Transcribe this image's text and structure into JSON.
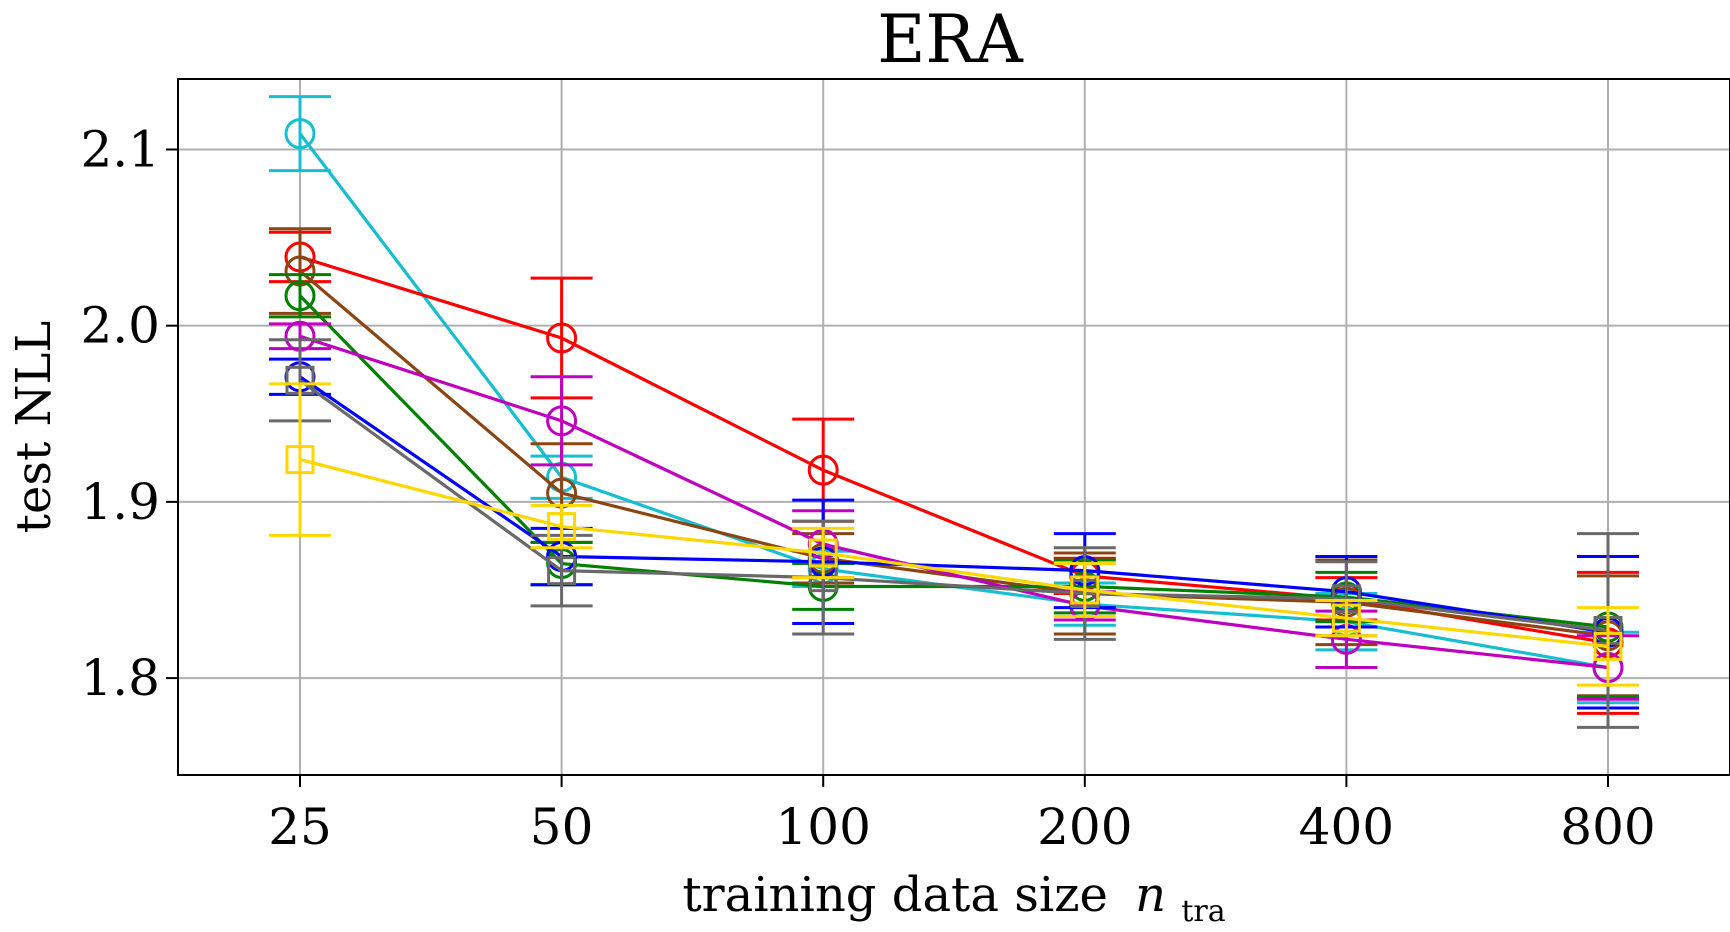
{
  "chart_data": {
    "type": "line",
    "title": "ERA",
    "xlabel": "training data size",
    "xlabel_symbol": "n",
    "xlabel_subscript": "tra",
    "ylabel": "test NLL",
    "x_scale": "log2",
    "categories": [
      "25",
      "50",
      "100",
      "200",
      "400",
      "800"
    ],
    "x": [
      25,
      50,
      100,
      200,
      400,
      800
    ],
    "ylim": [
      1.745,
      2.14
    ],
    "yticks": [
      1.8,
      1.9,
      2.0,
      2.1
    ],
    "ytick_labels": [
      "1.8",
      "1.9",
      "2.0",
      "2.1"
    ],
    "grid": true,
    "series": [
      {
        "name": "series-cyan",
        "color": "#17becf",
        "marker": "circle",
        "values": [
          2.109,
          1.914,
          1.862,
          1.842,
          1.832,
          1.806
        ],
        "errors": [
          0.021,
          0.012,
          0.01,
          0.012,
          0.016,
          0.02
        ]
      },
      {
        "name": "series-red",
        "color": "#ff0000",
        "marker": "circle",
        "values": [
          2.039,
          1.993,
          1.918,
          1.858,
          1.845,
          1.82
        ],
        "errors": [
          0.014,
          0.034,
          0.029,
          0.01,
          0.012,
          0.04
        ]
      },
      {
        "name": "series-brown",
        "color": "#8b4513",
        "marker": "circle",
        "values": [
          2.031,
          1.905,
          1.868,
          1.848,
          1.843,
          1.824
        ],
        "errors": [
          0.024,
          0.028,
          0.014,
          0.023,
          0.024,
          0.034
        ]
      },
      {
        "name": "series-green",
        "color": "#008000",
        "marker": "circle",
        "values": [
          2.017,
          1.865,
          1.852,
          1.852,
          1.846,
          1.829
        ],
        "errors": [
          0.012,
          0.012,
          0.013,
          0.015,
          0.014,
          0.04
        ]
      },
      {
        "name": "series-magenta",
        "color": "#bf00bf",
        "marker": "circle",
        "values": [
          1.994,
          1.946,
          1.876,
          1.841,
          1.822,
          1.806
        ],
        "errors": [
          0.007,
          0.025,
          0.019,
          0.008,
          0.016,
          0.018
        ]
      },
      {
        "name": "series-blue",
        "color": "#0000ff",
        "marker": "circle",
        "values": [
          1.971,
          1.869,
          1.866,
          1.861,
          1.849,
          1.826
        ],
        "errors": [
          0.01,
          0.016,
          0.035,
          0.021,
          0.02,
          0.043
        ]
      },
      {
        "name": "series-gray",
        "color": "#696969",
        "marker": "square",
        "values": [
          1.969,
          1.861,
          1.857,
          1.848,
          1.845,
          1.827
        ],
        "errors": [
          0.023,
          0.02,
          0.032,
          0.026,
          0.021,
          0.055
        ]
      },
      {
        "name": "series-gold",
        "color": "#ffd700",
        "marker": "square",
        "values": [
          1.924,
          1.886,
          1.871,
          1.85,
          1.834,
          1.818
        ],
        "errors": [
          0.043,
          0.012,
          0.014,
          0.015,
          0.01,
          0.022
        ]
      }
    ]
  }
}
